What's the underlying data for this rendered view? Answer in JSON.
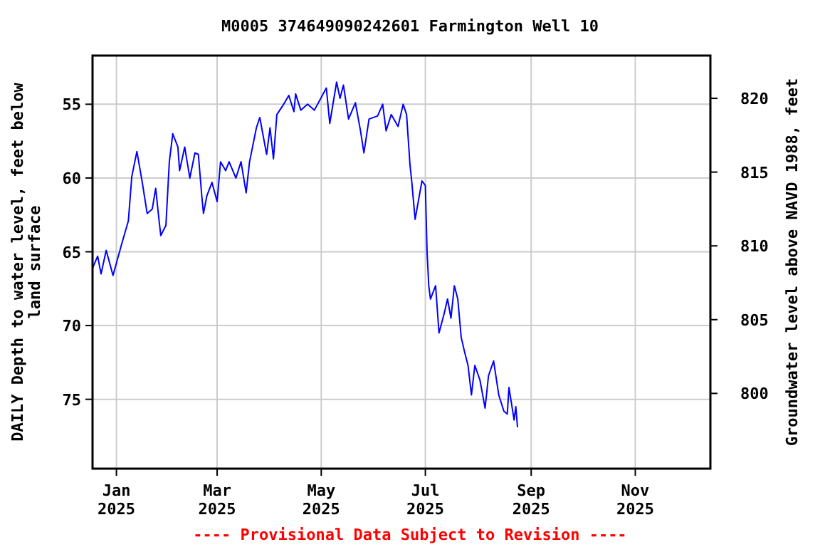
{
  "chart_data": {
    "type": "line",
    "title": "M0005 374649090242601 Farmington Well 10",
    "ylabel": "DAILY Depth to water level, feet below land surface",
    "y2label": "Groundwater level above NAVD 1988, feet",
    "annotations": [
      "---- Provisional Data Subject to Revision ----"
    ],
    "xlim": [
      "2024-12-18",
      "2025-12-15"
    ],
    "xticks": [
      {
        "value": "2025-01-01",
        "label": "Jan\n2025"
      },
      {
        "value": "2025-03-01",
        "label": "Mar\n2025"
      },
      {
        "value": "2025-05-01",
        "label": "May\n2025"
      },
      {
        "value": "2025-07-01",
        "label": "Jul\n2025"
      },
      {
        "value": "2025-09-01",
        "label": "Sep\n2025"
      },
      {
        "value": "2025-11-01",
        "label": "Nov\n2025"
      }
    ],
    "ylim": [
      79.7,
      51.7
    ],
    "yticks": [
      55,
      60,
      65,
      70,
      75
    ],
    "y2lim": [
      794.9,
      822.9
    ],
    "y2ticks": [
      800,
      805,
      810,
      815,
      820
    ],
    "grid": true,
    "marker": "none",
    "line_style": "solid",
    "series": [
      {
        "color": "#0000ff",
        "x": [
          "2024-12-18",
          "2024-12-21",
          "2024-12-23",
          "2024-12-26",
          "2024-12-30",
          "2025-01-04",
          "2025-01-08",
          "2025-01-10",
          "2025-01-13",
          "2025-01-16",
          "2025-01-19",
          "2025-01-22",
          "2025-01-24",
          "2025-01-26",
          "2025-01-27",
          "2025-01-30",
          "2025-02-01",
          "2025-02-03",
          "2025-02-06",
          "2025-02-07",
          "2025-02-10",
          "2025-02-13",
          "2025-02-16",
          "2025-02-18",
          "2025-02-20",
          "2025-02-21",
          "2025-02-23",
          "2025-02-26",
          "2025-03-01",
          "2025-03-03",
          "2025-03-06",
          "2025-03-08",
          "2025-03-12",
          "2025-03-15",
          "2025-03-18",
          "2025-03-20",
          "2025-03-24",
          "2025-03-26",
          "2025-03-30",
          "2025-04-01",
          "2025-04-03",
          "2025-04-05",
          "2025-04-09",
          "2025-04-12",
          "2025-04-15",
          "2025-04-16",
          "2025-04-19",
          "2025-04-23",
          "2025-04-27",
          "2025-05-04",
          "2025-05-06",
          "2025-05-10",
          "2025-05-12",
          "2025-05-14",
          "2025-05-17",
          "2025-05-21",
          "2025-05-24",
          "2025-05-26",
          "2025-05-29",
          "2025-06-03",
          "2025-06-06",
          "2025-06-08",
          "2025-06-11",
          "2025-06-15",
          "2025-06-18",
          "2025-06-20",
          "2025-06-22",
          "2025-06-23",
          "2025-06-25",
          "2025-06-29",
          "2025-07-01",
          "2025-07-02",
          "2025-07-03",
          "2025-07-04",
          "2025-07-07",
          "2025-07-09",
          "2025-07-12",
          "2025-07-14",
          "2025-07-16",
          "2025-07-18",
          "2025-07-20",
          "2025-07-22",
          "2025-07-24",
          "2025-07-26",
          "2025-07-28",
          "2025-07-30",
          "2025-08-02",
          "2025-08-05",
          "2025-08-07",
          "2025-08-10",
          "2025-08-13",
          "2025-08-16",
          "2025-08-18",
          "2025-08-19",
          "2025-08-22",
          "2025-08-23",
          "2025-08-24"
        ],
        "values": [
          66.1,
          65.3,
          66.5,
          64.9,
          66.6,
          64.5,
          62.9,
          59.9,
          58.2,
          60.2,
          62.4,
          62.1,
          60.7,
          62.9,
          63.9,
          63.2,
          58.9,
          57.0,
          57.9,
          59.5,
          57.9,
          60.0,
          58.3,
          58.4,
          61.2,
          62.4,
          61.2,
          60.3,
          61.6,
          58.9,
          59.5,
          58.9,
          60.0,
          58.9,
          61.0,
          58.9,
          56.6,
          55.9,
          58.4,
          56.6,
          58.7,
          55.7,
          55.0,
          54.4,
          55.5,
          54.3,
          55.4,
          55.0,
          55.4,
          53.9,
          56.3,
          53.5,
          54.6,
          53.7,
          56.0,
          54.9,
          56.8,
          58.3,
          56.0,
          55.8,
          55.0,
          56.8,
          55.7,
          56.5,
          55.0,
          55.7,
          59.1,
          60.2,
          62.8,
          60.2,
          60.5,
          65.0,
          67.3,
          68.2,
          67.3,
          70.5,
          69.2,
          68.2,
          69.5,
          67.3,
          68.2,
          70.8,
          71.8,
          72.7,
          74.7,
          72.7,
          73.7,
          75.6,
          73.4,
          72.4,
          74.7,
          75.8,
          76.0,
          74.2,
          76.4,
          75.5,
          76.9
        ]
      }
    ]
  }
}
